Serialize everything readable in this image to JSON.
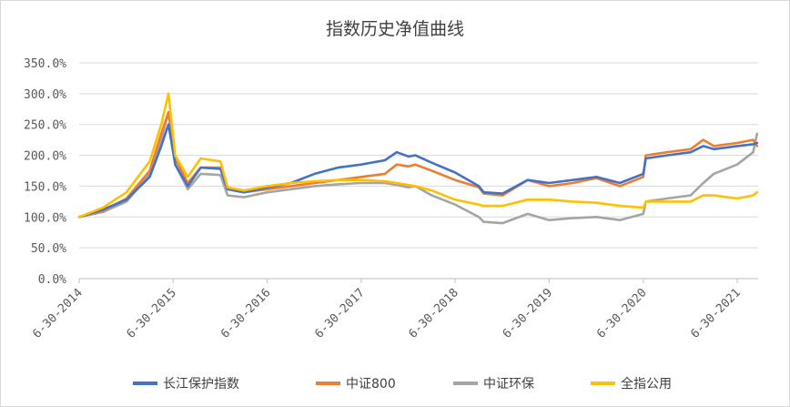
{
  "chart_data": {
    "type": "line",
    "title": "指数历史净值曲线",
    "xlabel": "",
    "ylabel": "",
    "ylim": [
      0,
      350
    ],
    "y_ticks": [
      "0.0%",
      "50.0%",
      "100.0%",
      "150.0%",
      "200.0%",
      "250.0%",
      "300.0%",
      "350.0%"
    ],
    "x_ticks": [
      "6-30-2014",
      "6-30-2015",
      "6-30-2016",
      "6-30-2017",
      "6-30-2018",
      "6-30-2019",
      "6-30-2020",
      "6-30-2021"
    ],
    "grid": true,
    "legend_position": "bottom",
    "x": [
      "2014-06-30",
      "2014-09-30",
      "2014-12-31",
      "2015-03-31",
      "2015-05-15",
      "2015-06-12",
      "2015-07-08",
      "2015-08-26",
      "2015-10-15",
      "2015-12-31",
      "2016-01-28",
      "2016-03-31",
      "2016-06-30",
      "2016-09-30",
      "2016-12-31",
      "2017-03-31",
      "2017-06-30",
      "2017-09-30",
      "2017-11-15",
      "2017-12-31",
      "2018-01-26",
      "2018-03-31",
      "2018-06-30",
      "2018-09-30",
      "2018-10-19",
      "2018-12-31",
      "2019-04-08",
      "2019-06-30",
      "2019-09-30",
      "2019-12-31",
      "2020-03-31",
      "2020-06-30",
      "2020-07-10",
      "2020-09-30",
      "2020-12-31",
      "2021-02-18",
      "2021-03-31",
      "2021-06-30",
      "2021-08-31",
      "2021-09-15"
    ],
    "series": [
      {
        "name": "长江保护指数",
        "color": "#4472C4",
        "values": [
          100,
          112,
          128,
          165,
          215,
          250,
          185,
          150,
          180,
          178,
          145,
          140,
          148,
          155,
          170,
          180,
          185,
          192,
          205,
          198,
          200,
          188,
          172,
          150,
          140,
          138,
          160,
          155,
          160,
          165,
          155,
          170,
          195,
          200,
          205,
          215,
          210,
          215,
          218,
          220
        ]
      },
      {
        "name": "中证800",
        "color": "#ED7D31",
        "values": [
          100,
          110,
          130,
          175,
          235,
          270,
          195,
          155,
          180,
          180,
          145,
          140,
          145,
          150,
          155,
          160,
          165,
          170,
          185,
          182,
          185,
          175,
          160,
          148,
          138,
          135,
          160,
          150,
          155,
          163,
          150,
          165,
          200,
          205,
          210,
          225,
          215,
          220,
          225,
          215
        ]
      },
      {
        "name": "中证环保",
        "color": "#A5A5A5",
        "values": [
          100,
          108,
          125,
          170,
          225,
          270,
          185,
          145,
          170,
          168,
          135,
          132,
          140,
          145,
          150,
          153,
          155,
          155,
          152,
          148,
          150,
          135,
          120,
          100,
          92,
          90,
          105,
          95,
          98,
          100,
          95,
          105,
          125,
          130,
          135,
          155,
          170,
          185,
          205,
          235
        ]
      },
      {
        "name": "全指公用",
        "color": "#FFC000",
        "values": [
          100,
          115,
          140,
          190,
          250,
          300,
          200,
          165,
          195,
          190,
          148,
          143,
          150,
          155,
          158,
          160,
          160,
          158,
          155,
          152,
          150,
          143,
          128,
          120,
          118,
          118,
          128,
          128,
          125,
          123,
          118,
          115,
          125,
          125,
          125,
          135,
          135,
          130,
          135,
          140
        ]
      }
    ]
  }
}
